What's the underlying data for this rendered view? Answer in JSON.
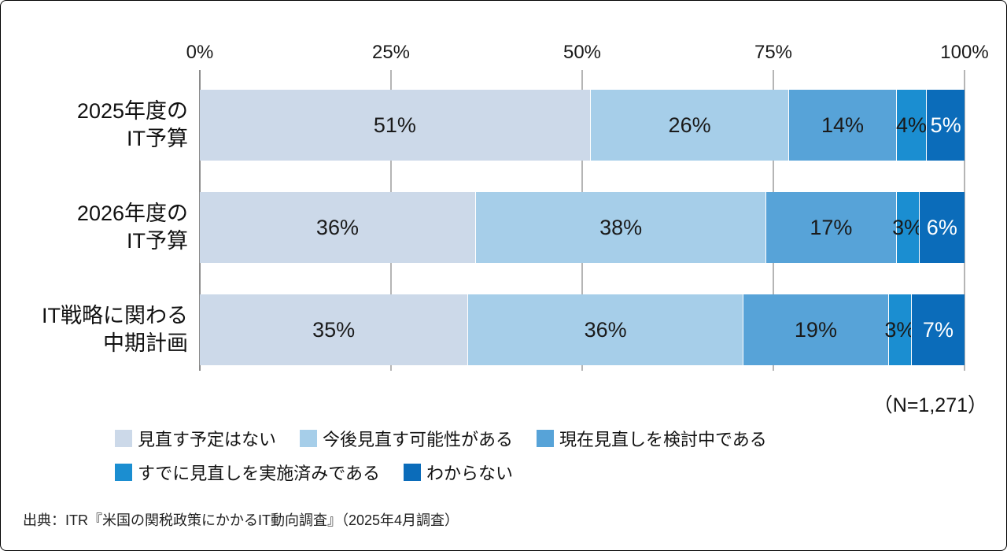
{
  "chart_data": {
    "type": "bar",
    "orientation": "horizontal",
    "stacked": true,
    "categories": [
      [
        "2025年度の",
        "IT予算"
      ],
      [
        "2026年度の",
        "IT予算"
      ],
      [
        "IT戦略に関わる",
        "中期計画"
      ]
    ],
    "series": [
      {
        "name": "見直す予定はない",
        "color": "#ccd9e9",
        "text_color": "#1a1a1a",
        "values": [
          51,
          36,
          35
        ]
      },
      {
        "name": "今後見直す可能性がある",
        "color": "#a6cee9",
        "text_color": "#1a1a1a",
        "values": [
          26,
          38,
          36
        ]
      },
      {
        "name": "現在見直しを検討中である",
        "color": "#57a3d8",
        "text_color": "#1a1a1a",
        "values": [
          14,
          17,
          19
        ]
      },
      {
        "name": "すでに見直しを実施済みである",
        "color": "#1b8ed1",
        "text_color": "#1a1a1a",
        "values": [
          4,
          3,
          3
        ]
      },
      {
        "name": "わからない",
        "color": "#0b6cba",
        "text_color": "#ffffff",
        "values": [
          5,
          6,
          7
        ]
      }
    ],
    "x_ticks": [
      "0%",
      "25%",
      "50%",
      "75%",
      "100%"
    ],
    "xlim": [
      0,
      100
    ],
    "value_suffix": "%",
    "grid": "vertical-ticks",
    "legend_position": "bottom",
    "legend_rows": [
      [
        0,
        1,
        2
      ],
      [
        3,
        4
      ]
    ],
    "sample_note": "（N=1,271）",
    "source": "出典：ITR『米国の関税政策にかかるIT動向調査』（2025年4月調査）"
  }
}
